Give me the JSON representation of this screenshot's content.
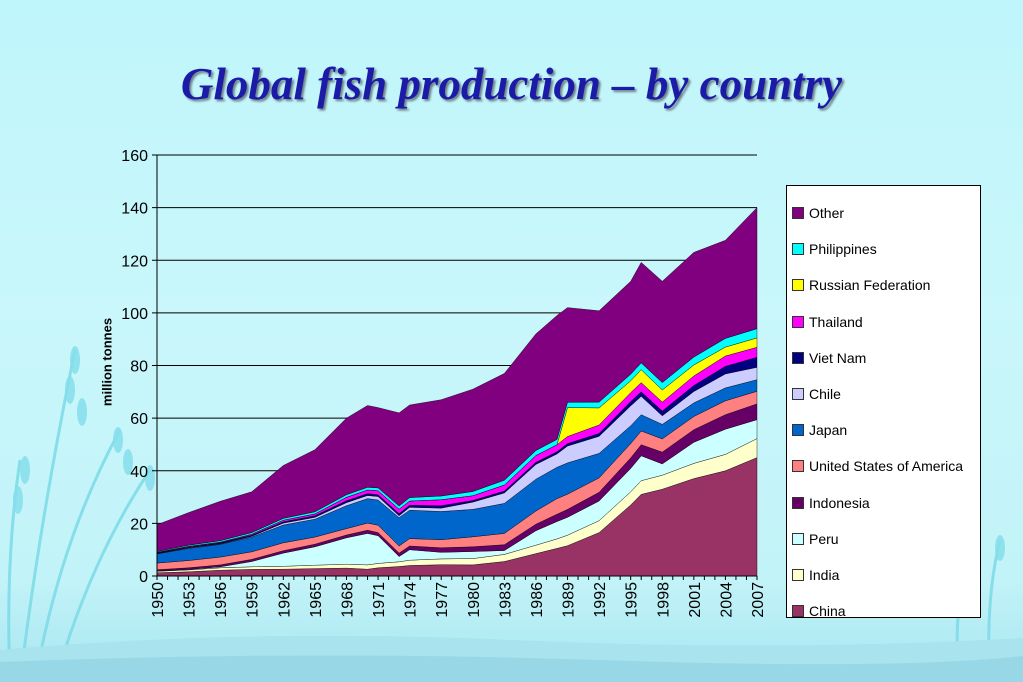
{
  "title": "Global fish production – by country",
  "chart_data": {
    "type": "area",
    "stacked": true,
    "title": "Global fish production – by country",
    "ylabel": "million tonnes",
    "xlabel": "",
    "ylim": [
      0,
      160
    ],
    "yticks": [
      0,
      20,
      40,
      60,
      80,
      100,
      120,
      140,
      160
    ],
    "xticks": [
      "1950",
      "1953",
      "1956",
      "1959",
      "1962",
      "1965",
      "1968",
      "1971",
      "1974",
      "1977",
      "1980",
      "1983",
      "1986",
      "1989",
      "1992",
      "1995",
      "1998",
      "2001",
      "2004",
      "2007"
    ],
    "grid": "horizontal",
    "legend_position": "right",
    "years": [
      1950,
      1953,
      1956,
      1959,
      1962,
      1965,
      1968,
      1970,
      1971,
      1973,
      1974,
      1977,
      1980,
      1983,
      1986,
      1988,
      1989,
      1992,
      1995,
      1996,
      1998,
      2001,
      2004,
      2007
    ],
    "series": [
      {
        "name": "China",
        "color": "#993366",
        "values": [
          1.2,
          1.6,
          2.2,
          2.5,
          2.6,
          2.8,
          3.0,
          2.6,
          3.1,
          3.6,
          4.0,
          4.3,
          4.2,
          5.5,
          8.5,
          10.5,
          11.5,
          16.5,
          27,
          31,
          33,
          37,
          40,
          45
        ]
      },
      {
        "name": "India",
        "color": "#ffffcc",
        "values": [
          0.6,
          0.7,
          0.9,
          1.0,
          1.1,
          1.3,
          1.5,
          1.6,
          1.7,
          1.8,
          2.0,
          2.2,
          2.4,
          2.7,
          3.2,
          3.6,
          4.0,
          4.5,
          5.0,
          5.2,
          5.3,
          5.8,
          6.2,
          7.2
        ]
      },
      {
        "name": "Peru",
        "color": "#ccffff",
        "values": [
          0.1,
          0.2,
          0.4,
          2.0,
          5.0,
          7.0,
          10.0,
          12.0,
          10.5,
          2.0,
          4.0,
          2.5,
          2.7,
          1.5,
          5.5,
          6.6,
          6.8,
          7.5,
          8.9,
          9.5,
          4.3,
          8.0,
          9.6,
          7.2
        ]
      },
      {
        "name": "Indonesia",
        "color": "#660066",
        "values": [
          0.5,
          0.6,
          0.7,
          0.8,
          0.9,
          1.0,
          1.1,
          1.2,
          1.2,
          1.3,
          1.4,
          1.7,
          1.8,
          2.2,
          2.5,
          2.8,
          3.0,
          3.3,
          4.0,
          4.2,
          4.5,
          4.8,
          5.5,
          6.0
        ]
      },
      {
        "name": "United States of America",
        "color": "#ff8080",
        "values": [
          2.5,
          2.8,
          3.0,
          2.9,
          3.0,
          2.7,
          2.4,
          2.7,
          2.8,
          2.7,
          2.8,
          3.1,
          3.8,
          4.3,
          5.0,
          5.9,
          5.8,
          5.5,
          5.4,
          5.2,
          5.0,
          5.0,
          5.3,
          4.8
        ]
      },
      {
        "name": "Japan",
        "color": "#0066cc",
        "values": [
          3.5,
          4.6,
          4.8,
          5.6,
          6.8,
          6.8,
          8.7,
          9.3,
          9.6,
          10.8,
          10.8,
          10.7,
          10.4,
          11.4,
          12.1,
          11.9,
          11.9,
          9.3,
          6.8,
          6.2,
          5.5,
          5.2,
          4.9,
          4.4
        ]
      },
      {
        "name": "Chile",
        "color": "#ccccff",
        "values": [
          0.1,
          0.2,
          0.2,
          0.3,
          0.7,
          0.7,
          1.2,
          1.2,
          1.3,
          0.7,
          1.1,
          1.3,
          2.8,
          4.0,
          5.6,
          5.1,
          6.4,
          6.5,
          7.6,
          7.0,
          3.3,
          4.3,
          5.3,
          4.7
        ]
      },
      {
        "name": "Viet Nam",
        "color": "#000080",
        "values": [
          0.3,
          0.3,
          0.4,
          0.4,
          0.5,
          0.6,
          0.7,
          0.7,
          0.7,
          0.8,
          0.8,
          0.9,
          0.6,
          0.7,
          0.8,
          0.8,
          0.9,
          1.1,
          1.6,
          1.7,
          1.8,
          2.3,
          2.9,
          3.8
        ]
      },
      {
        "name": "Thailand",
        "color": "#ff00ff",
        "values": [
          0.2,
          0.3,
          0.3,
          0.4,
          0.6,
          0.7,
          1.3,
          1.4,
          1.5,
          1.7,
          1.6,
          2.3,
          1.8,
          2.3,
          2.6,
          2.7,
          2.7,
          3.2,
          3.4,
          3.5,
          3.4,
          3.6,
          3.9,
          3.8
        ]
      },
      {
        "name": "Russian Federation",
        "color": "#ffff00",
        "values": [
          0,
          0,
          0,
          0,
          0,
          0,
          0,
          0,
          0,
          0,
          0,
          0,
          0,
          0,
          0,
          0,
          11.0,
          6.5,
          4.5,
          4.9,
          4.6,
          4.2,
          3.4,
          3.6
        ]
      },
      {
        "name": "Philippines",
        "color": "#00ffff",
        "values": [
          0.3,
          0.4,
          0.5,
          0.6,
          0.7,
          0.8,
          1.0,
          1.0,
          1.1,
          1.2,
          1.3,
          1.4,
          1.6,
          1.8,
          1.9,
          2.0,
          2.0,
          2.2,
          2.5,
          2.6,
          2.8,
          3.0,
          3.3,
          3.5
        ]
      },
      {
        "name": "Other",
        "color": "#800080",
        "values": [
          10.2,
          12.4,
          15.0,
          15.5,
          20.1,
          23.6,
          29.1,
          31.1,
          30.5,
          35.4,
          35.2,
          36.6,
          38.9,
          40.6,
          44.3,
          47.1,
          36.0,
          34.7,
          35.3,
          38.2,
          38.5,
          39.8,
          37.3,
          46.0
        ]
      }
    ]
  }
}
